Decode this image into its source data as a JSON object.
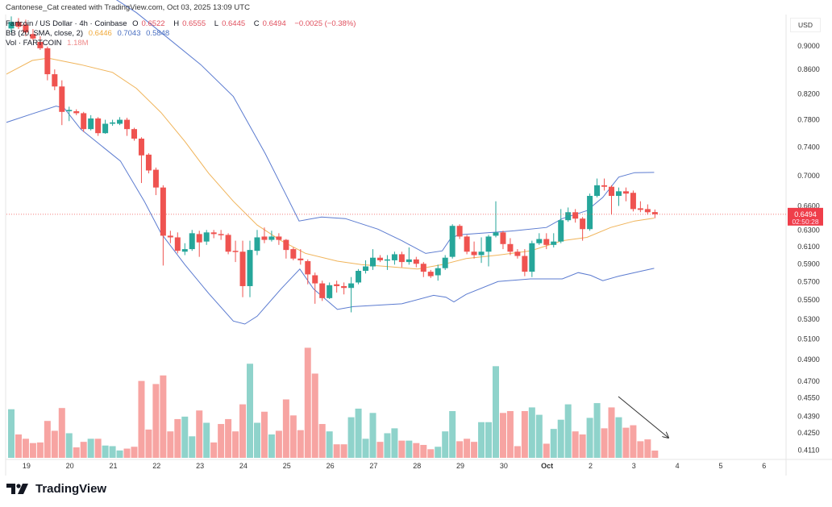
{
  "header": {
    "credit": "Cantonese_Cat created with TradingView.com, Oct 03, 2025 13:09 UTC",
    "symbol": "Fartcoin / US Dollar · 4h · Coinbase",
    "open_label": "O",
    "open": "0.6522",
    "high_label": "H",
    "high": "0.6555",
    "low_label": "L",
    "low": "0.6445",
    "close_label": "C",
    "close": "0.6494",
    "change": "−0.0025 (−0.38%)",
    "bb_label": "BB (20, SMA, close, 2)",
    "bb_mid": "0.6446",
    "bb_upper": "0.7043",
    "bb_lower": "0.5848",
    "vol_label": "Vol · FARTCOIN",
    "vol_value": "1.18M"
  },
  "currency": "USD",
  "last_price": {
    "price": "0.6494",
    "countdown": "02:50:28"
  },
  "footer": {
    "brand": "TradingView"
  },
  "colors": {
    "up": "#26a69a",
    "down": "#ef5350",
    "vol_up": "#8fd3cb",
    "vol_down": "#f7a4a2",
    "bb_mid": "#f0b45a",
    "bb_band": "#5b7bd0",
    "price_line": "#ef5350"
  },
  "chart_data": {
    "type": "candlestick",
    "title": "Fartcoin / US Dollar · 4h · Coinbase",
    "y_scale": "log",
    "ylim": [
      0.405,
      0.953
    ],
    "y_ticks": [
      "0.9000",
      "0.8600",
      "0.8200",
      "0.7800",
      "0.7400",
      "0.7000",
      "0.6600",
      "0.6300",
      "0.6100",
      "0.5900",
      "0.5700",
      "0.5500",
      "0.5300",
      "0.5100",
      "0.4900",
      "0.4700",
      "0.4550",
      "0.4390",
      "0.4250",
      "0.4110"
    ],
    "x_ticks": [
      "19",
      "20",
      "21",
      "22",
      "23",
      "24",
      "25",
      "26",
      "27",
      "28",
      "29",
      "30",
      "Oct",
      "2",
      "3",
      "4",
      "5",
      "6"
    ],
    "candles_ohlc": [
      [
        0.931,
        0.953,
        0.924,
        0.943
      ],
      [
        0.943,
        0.95,
        0.93,
        0.934
      ],
      [
        0.938,
        0.947,
        0.917,
        0.924
      ],
      [
        0.921,
        0.93,
        0.91,
        0.913
      ],
      [
        0.907,
        0.917,
        0.893,
        0.896
      ],
      [
        0.896,
        0.899,
        0.842,
        0.852
      ],
      [
        0.852,
        0.86,
        0.826,
        0.832
      ],
      [
        0.832,
        0.842,
        0.772,
        0.792
      ],
      [
        0.793,
        0.8,
        0.778,
        0.795
      ],
      [
        0.793,
        0.796,
        0.787,
        0.79
      ],
      [
        0.79,
        0.792,
        0.762,
        0.766
      ],
      [
        0.766,
        0.787,
        0.764,
        0.782
      ],
      [
        0.782,
        0.784,
        0.756,
        0.76
      ],
      [
        0.76,
        0.78,
        0.759,
        0.774
      ],
      [
        0.774,
        0.78,
        0.771,
        0.776
      ],
      [
        0.774,
        0.784,
        0.772,
        0.78
      ],
      [
        0.78,
        0.783,
        0.756,
        0.766
      ],
      [
        0.766,
        0.768,
        0.749,
        0.752
      ],
      [
        0.752,
        0.754,
        0.69,
        0.728
      ],
      [
        0.729,
        0.731,
        0.703,
        0.707
      ],
      [
        0.708,
        0.711,
        0.674,
        0.684
      ],
      [
        0.684,
        0.687,
        0.588,
        0.623
      ],
      [
        0.623,
        0.629,
        0.614,
        0.621
      ],
      [
        0.621,
        0.627,
        0.602,
        0.605
      ],
      [
        0.604,
        0.614,
        0.6,
        0.607
      ],
      [
        0.607,
        0.63,
        0.605,
        0.626
      ],
      [
        0.625,
        0.629,
        0.598,
        0.615
      ],
      [
        0.616,
        0.63,
        0.612,
        0.627
      ],
      [
        0.627,
        0.63,
        0.62,
        0.625
      ],
      [
        0.625,
        0.63,
        0.618,
        0.624
      ],
      [
        0.624,
        0.626,
        0.601,
        0.604
      ],
      [
        0.605,
        0.617,
        0.592,
        0.604
      ],
      [
        0.604,
        0.617,
        0.553,
        0.565
      ],
      [
        0.565,
        0.617,
        0.553,
        0.606
      ],
      [
        0.605,
        0.63,
        0.6,
        0.621
      ],
      [
        0.622,
        0.633,
        0.614,
        0.618
      ],
      [
        0.618,
        0.629,
        0.616,
        0.622
      ],
      [
        0.622,
        0.626,
        0.612,
        0.618
      ],
      [
        0.618,
        0.619,
        0.596,
        0.606
      ],
      [
        0.607,
        0.609,
        0.594,
        0.596
      ],
      [
        0.596,
        0.607,
        0.589,
        0.594
      ],
      [
        0.593,
        0.595,
        0.567,
        0.578
      ],
      [
        0.577,
        0.58,
        0.546,
        0.568
      ],
      [
        0.568,
        0.571,
        0.549,
        0.552
      ],
      [
        0.552,
        0.569,
        0.551,
        0.566
      ],
      [
        0.567,
        0.571,
        0.558,
        0.565
      ],
      [
        0.565,
        0.569,
        0.556,
        0.563
      ],
      [
        0.563,
        0.575,
        0.537,
        0.568
      ],
      [
        0.569,
        0.584,
        0.567,
        0.582
      ],
      [
        0.582,
        0.594,
        0.579,
        0.587
      ],
      [
        0.587,
        0.607,
        0.583,
        0.597
      ],
      [
        0.597,
        0.6,
        0.592,
        0.594
      ],
      [
        0.594,
        0.6,
        0.583,
        0.595
      ],
      [
        0.594,
        0.604,
        0.589,
        0.601
      ],
      [
        0.601,
        0.604,
        0.586,
        0.592
      ],
      [
        0.592,
        0.609,
        0.589,
        0.595
      ],
      [
        0.595,
        0.598,
        0.586,
        0.59
      ],
      [
        0.59,
        0.592,
        0.575,
        0.581
      ],
      [
        0.581,
        0.583,
        0.574,
        0.576
      ],
      [
        0.577,
        0.589,
        0.571,
        0.585
      ],
      [
        0.585,
        0.6,
        0.583,
        0.597
      ],
      [
        0.598,
        0.637,
        0.596,
        0.635
      ],
      [
        0.635,
        0.637,
        0.619,
        0.622
      ],
      [
        0.622,
        0.624,
        0.601,
        0.604
      ],
      [
        0.604,
        0.616,
        0.596,
        0.6
      ],
      [
        0.6,
        0.621,
        0.591,
        0.604
      ],
      [
        0.604,
        0.624,
        0.587,
        0.622
      ],
      [
        0.623,
        0.666,
        0.621,
        0.627
      ],
      [
        0.627,
        0.629,
        0.607,
        0.613
      ],
      [
        0.613,
        0.62,
        0.6,
        0.604
      ],
      [
        0.604,
        0.607,
        0.596,
        0.599
      ],
      [
        0.599,
        0.607,
        0.576,
        0.581
      ],
      [
        0.581,
        0.617,
        0.575,
        0.614
      ],
      [
        0.614,
        0.626,
        0.612,
        0.619
      ],
      [
        0.619,
        0.626,
        0.607,
        0.612
      ],
      [
        0.612,
        0.626,
        0.609,
        0.616
      ],
      [
        0.616,
        0.656,
        0.614,
        0.642
      ],
      [
        0.642,
        0.658,
        0.64,
        0.652
      ],
      [
        0.652,
        0.656,
        0.639,
        0.644
      ],
      [
        0.644,
        0.646,
        0.617,
        0.631
      ],
      [
        0.631,
        0.676,
        0.629,
        0.673
      ],
      [
        0.673,
        0.696,
        0.671,
        0.687
      ],
      [
        0.687,
        0.696,
        0.68,
        0.685
      ],
      [
        0.685,
        0.687,
        0.649,
        0.673
      ],
      [
        0.673,
        0.684,
        0.66,
        0.679
      ],
      [
        0.679,
        0.684,
        0.666,
        0.676
      ],
      [
        0.677,
        0.68,
        0.653,
        0.656
      ],
      [
        0.657,
        0.666,
        0.652,
        0.655
      ],
      [
        0.656,
        0.662,
        0.649,
        0.652
      ],
      [
        0.6522,
        0.6555,
        0.6445,
        0.6494
      ]
    ],
    "volume_millions": [
      7.9,
      3.8,
      3.1,
      2.4,
      2.5,
      6.0,
      4.4,
      8.1,
      4.0,
      1.7,
      2.6,
      3.1,
      3.1,
      2.0,
      1.9,
      1.2,
      1.5,
      1.8,
      12.5,
      4.6,
      12.0,
      13.4,
      4.3,
      6.3,
      6.7,
      3.5,
      7.7,
      5.7,
      2.5,
      5.5,
      6.3,
      4.3,
      8.7,
      15.3,
      5.7,
      7.5,
      3.8,
      4.4,
      9.5,
      6.9,
      4.5,
      17.9,
      13.7,
      5.5,
      4.3,
      2.2,
      2.2,
      6.6,
      8.0,
      3.1,
      7.3,
      2.6,
      4.0,
      4.8,
      2.8,
      2.8,
      2.4,
      2.1,
      1.4,
      1.8,
      4.3,
      7.6,
      2.7,
      3.1,
      2.6,
      5.8,
      5.8,
      14.9,
      7.3,
      7.6,
      1.9,
      7.6,
      8.2,
      7.0,
      2.3,
      4.7,
      6.2,
      8.7,
      4.3,
      3.8,
      6.5,
      8.9,
      4.8,
      8.2,
      6.6,
      4.9,
      5.3,
      2.7,
      3.0,
      1.18
    ],
    "bb_upper": [
      [
        12.9,
        0.999
      ],
      [
        17.3,
        0.96
      ],
      [
        20.7,
        0.924
      ],
      [
        26.2,
        0.868
      ],
      [
        30.7,
        0.816
      ],
      [
        35.1,
        0.731
      ],
      [
        37.9,
        0.676
      ],
      [
        39.8,
        0.641
      ],
      [
        42.9,
        0.646
      ],
      [
        46.2,
        0.644
      ],
      [
        50.7,
        0.631
      ],
      [
        54,
        0.617
      ],
      [
        57.3,
        0.602
      ],
      [
        59.6,
        0.605
      ],
      [
        60.7,
        0.619
      ],
      [
        61.8,
        0.624
      ],
      [
        65.1,
        0.626
      ],
      [
        69.6,
        0.629
      ],
      [
        74,
        0.633
      ],
      [
        76.2,
        0.644
      ],
      [
        79.6,
        0.654
      ],
      [
        81.8,
        0.671
      ],
      [
        84,
        0.698
      ],
      [
        86.2,
        0.704
      ],
      [
        88.9,
        0.7043
      ]
    ],
    "bb_mid": [
      [
        -0.7,
        0.852
      ],
      [
        2.9,
        0.875
      ],
      [
        5.1,
        0.879
      ],
      [
        9.6,
        0.868
      ],
      [
        14,
        0.855
      ],
      [
        17.3,
        0.829
      ],
      [
        20.7,
        0.791
      ],
      [
        24,
        0.748
      ],
      [
        27.3,
        0.703
      ],
      [
        30.7,
        0.666
      ],
      [
        34,
        0.636
      ],
      [
        37.3,
        0.617
      ],
      [
        40.7,
        0.602
      ],
      [
        45.1,
        0.593
      ],
      [
        48.4,
        0.589
      ],
      [
        51.8,
        0.587
      ],
      [
        56.2,
        0.584
      ],
      [
        59.6,
        0.589
      ],
      [
        62.9,
        0.596
      ],
      [
        67.3,
        0.6
      ],
      [
        71.8,
        0.605
      ],
      [
        76.2,
        0.617
      ],
      [
        79.6,
        0.621
      ],
      [
        82.9,
        0.633
      ],
      [
        86.2,
        0.641
      ],
      [
        88.9,
        0.6446
      ]
    ],
    "bb_lower": [
      [
        -0.7,
        0.776
      ],
      [
        2.9,
        0.789
      ],
      [
        6.2,
        0.801
      ],
      [
        7.3,
        0.798
      ],
      [
        9.6,
        0.766
      ],
      [
        15.1,
        0.72
      ],
      [
        18.4,
        0.666
      ],
      [
        20.7,
        0.626
      ],
      [
        24,
        0.589
      ],
      [
        27.3,
        0.557
      ],
      [
        30.7,
        0.528
      ],
      [
        32.3,
        0.525
      ],
      [
        34,
        0.533
      ],
      [
        37.3,
        0.562
      ],
      [
        39.9,
        0.584
      ],
      [
        41.8,
        0.562
      ],
      [
        45.1,
        0.54
      ],
      [
        47.3,
        0.543
      ],
      [
        54,
        0.546
      ],
      [
        58.4,
        0.555
      ],
      [
        60.1,
        0.553
      ],
      [
        61.2,
        0.548
      ],
      [
        62.9,
        0.556
      ],
      [
        67.3,
        0.57
      ],
      [
        71.8,
        0.573
      ],
      [
        76.2,
        0.573
      ],
      [
        78.4,
        0.58
      ],
      [
        80.1,
        0.577
      ],
      [
        81.8,
        0.571
      ],
      [
        84,
        0.576
      ],
      [
        87.3,
        0.582
      ],
      [
        88.9,
        0.5848
      ]
    ],
    "annotation": "down-arrow over declining volume"
  }
}
